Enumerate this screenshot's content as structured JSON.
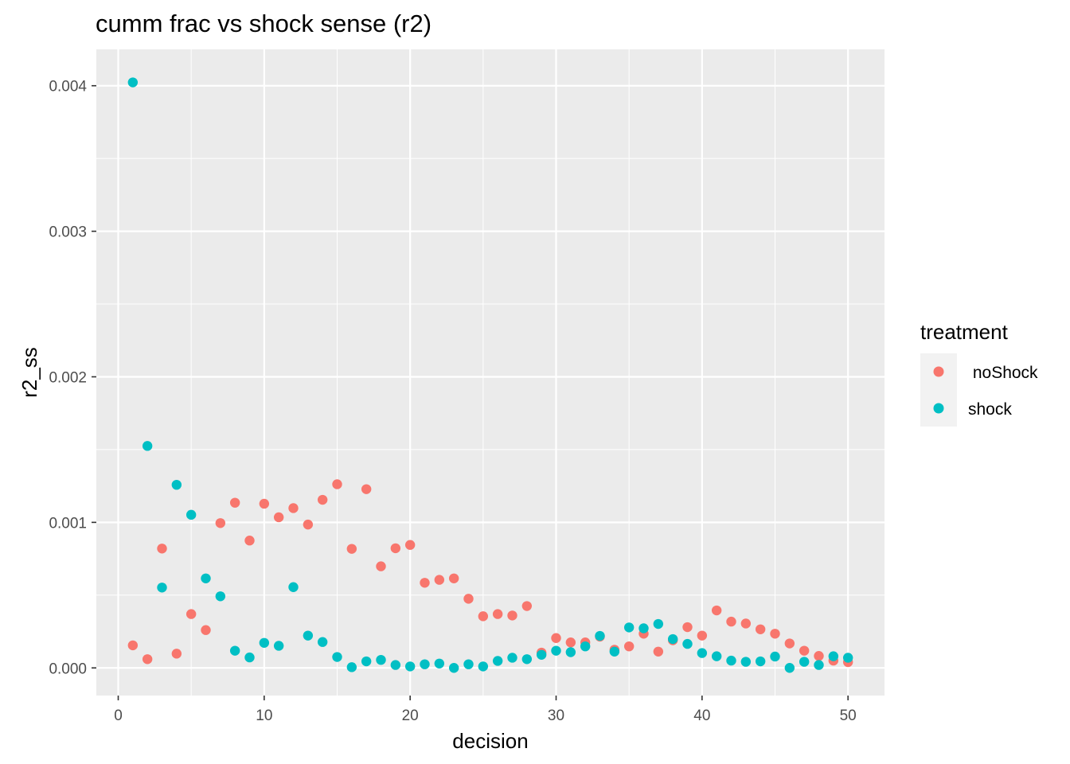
{
  "chart_data": {
    "type": "scatter",
    "title": "cumm frac vs shock sense (r2)",
    "xlabel": "decision",
    "ylabel": "r2_ss",
    "xlim": [
      -1.5,
      52.5
    ],
    "ylim": [
      -0.00019,
      0.00425
    ],
    "x_ticks": [
      0,
      10,
      20,
      30,
      40,
      50
    ],
    "x_tick_labels": [
      "0",
      "10",
      "20",
      "30",
      "40",
      "50"
    ],
    "y_ticks": [
      0,
      0.001,
      0.002,
      0.003,
      0.004
    ],
    "y_tick_labels": [
      "0.000",
      "0.001",
      "0.002",
      "0.003",
      "0.004"
    ],
    "grid": true,
    "legend": {
      "title": "treatment",
      "position": "right"
    },
    "series": [
      {
        "name": " noShock",
        "color": "#F8766D",
        "x": [
          1,
          2,
          3,
          4,
          5,
          6,
          7,
          8,
          9,
          10,
          11,
          12,
          13,
          14,
          15,
          16,
          17,
          18,
          19,
          20,
          21,
          22,
          23,
          24,
          25,
          26,
          27,
          28,
          29,
          30,
          31,
          32,
          33,
          34,
          35,
          36,
          37,
          38,
          39,
          40,
          41,
          42,
          43,
          44,
          45,
          46,
          47,
          48,
          49,
          50
        ],
        "y": [
          0.000155,
          6e-05,
          0.00082,
          9.8e-05,
          0.00037,
          0.00026,
          0.000995,
          0.001135,
          0.000875,
          0.001128,
          0.001035,
          0.001098,
          0.000985,
          0.001155,
          0.001262,
          0.000818,
          0.001228,
          0.000698,
          0.000822,
          0.000845,
          0.000585,
          0.000605,
          0.000615,
          0.000475,
          0.000355,
          0.00037,
          0.00036,
          0.000425,
          0.000105,
          0.000205,
          0.000175,
          0.000175,
          0.000215,
          0.000125,
          0.000148,
          0.000235,
          0.000112,
          0.00019,
          0.00028,
          0.000222,
          0.000395,
          0.000318,
          0.000305,
          0.000265,
          0.000235,
          0.000168,
          0.000118,
          8.2e-05,
          5e-05,
          4e-05
        ]
      },
      {
        "name": "shock",
        "color": "#00BFC4",
        "x": [
          1,
          2,
          3,
          4,
          5,
          6,
          7,
          8,
          9,
          10,
          11,
          12,
          13,
          14,
          15,
          16,
          17,
          18,
          19,
          20,
          21,
          22,
          23,
          24,
          25,
          26,
          27,
          28,
          29,
          30,
          31,
          32,
          33,
          34,
          35,
          36,
          37,
          38,
          39,
          40,
          41,
          42,
          43,
          44,
          45,
          46,
          47,
          48,
          49,
          50
        ],
        "y": [
          0.004023,
          0.001525,
          0.000552,
          0.001258,
          0.001052,
          0.000615,
          0.000492,
          0.000118,
          7.2e-05,
          0.000172,
          0.000152,
          0.000555,
          0.000222,
          0.000178,
          7.5e-05,
          5e-06,
          4.5e-05,
          5.5e-05,
          2e-05,
          1e-05,
          2.5e-05,
          3e-05,
          0.0,
          2.5e-05,
          1e-05,
          4.8e-05,
          7e-05,
          6e-05,
          9e-05,
          0.000118,
          0.000108,
          0.000148,
          0.00022,
          0.000112,
          0.000278,
          0.000272,
          0.000302,
          0.000198,
          0.000165,
          0.000102,
          8e-05,
          5e-05,
          4.2e-05,
          4.5e-05,
          7.8e-05,
          0.0,
          4.2e-05,
          2e-05,
          8e-05,
          7e-05
        ]
      }
    ]
  }
}
